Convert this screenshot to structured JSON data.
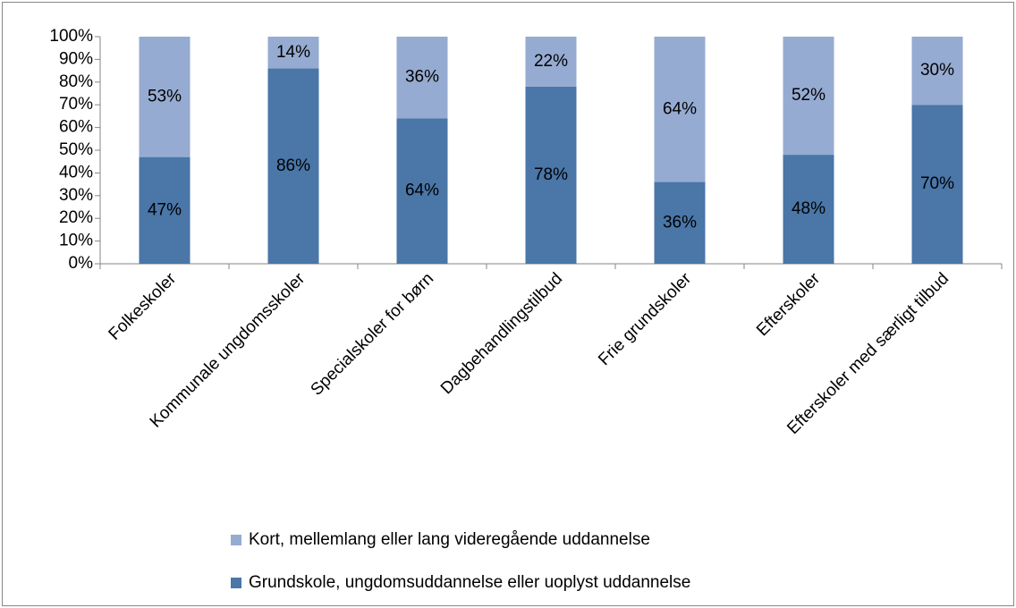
{
  "chart_data": {
    "type": "stacked_bar",
    "categories": [
      "Folkeskoler",
      "Kommunale ungdomsskoler",
      "Specialskoler for børn",
      "Dagbehandlingstilbud",
      "Frie grundskoler",
      "Efterskoler",
      "Efterskoler med særligt tilbud"
    ],
    "series": [
      {
        "name": "Grundskole, ungdomsuddannelse eller uoplyst uddannelse",
        "color": "#4a76a8",
        "values": [
          47,
          86,
          64,
          78,
          36,
          48,
          70
        ],
        "value_labels": [
          "47%",
          "86%",
          "64%",
          "78%",
          "36%",
          "48%",
          "70%"
        ]
      },
      {
        "name": "Kort, mellemlang eller lang videregående uddannelse",
        "color": "#96abd1",
        "values": [
          53,
          14,
          36,
          22,
          64,
          52,
          30
        ],
        "value_labels": [
          "53%",
          "14%",
          "36%",
          "22%",
          "64%",
          "52%",
          "30%"
        ]
      }
    ],
    "ylim": [
      0,
      100
    ],
    "yticks": [
      {
        "value": 0,
        "label": "0%"
      },
      {
        "value": 10,
        "label": "10%"
      },
      {
        "value": 20,
        "label": "20%"
      },
      {
        "value": 30,
        "label": "30%"
      },
      {
        "value": 40,
        "label": "40%"
      },
      {
        "value": 50,
        "label": "50%"
      },
      {
        "value": 60,
        "label": "60%"
      },
      {
        "value": 70,
        "label": "70%"
      },
      {
        "value": 80,
        "label": "80%"
      },
      {
        "value": 90,
        "label": "90%"
      },
      {
        "value": 100,
        "label": "100%"
      }
    ],
    "legend": "bottom"
  }
}
